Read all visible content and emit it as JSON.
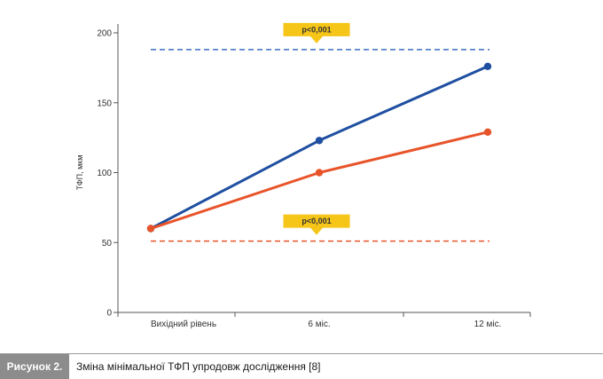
{
  "figure": {
    "label": "Рисунок 2.",
    "caption": "Зміна мінімальної ТФП упродовж дослідження [8]"
  },
  "chart_data": {
    "type": "line",
    "categories": [
      "Вихідний рівень",
      "6 міс.",
      "12 міс."
    ],
    "ylabel": "ТФП, мкм",
    "ylim": [
      0,
      200
    ],
    "yticks": [
      0,
      50,
      100,
      150,
      200
    ],
    "grid": false,
    "series": [
      {
        "color": "#1f4fa0",
        "values": [
          60,
          123,
          176
        ]
      },
      {
        "color": "#e8542a",
        "values": [
          60,
          100,
          129
        ]
      }
    ],
    "reference_lines": [
      {
        "value": 188,
        "color": "#3a6fc4",
        "style": "dashed"
      },
      {
        "value": 51,
        "color": "#e8542a",
        "style": "dashed"
      }
    ],
    "annotations": [
      {
        "text": "p<0,001",
        "color": "#f5c518",
        "near_value": 188
      },
      {
        "text": "p<0,001",
        "color": "#f5c518",
        "near_value": 51
      }
    ]
  }
}
